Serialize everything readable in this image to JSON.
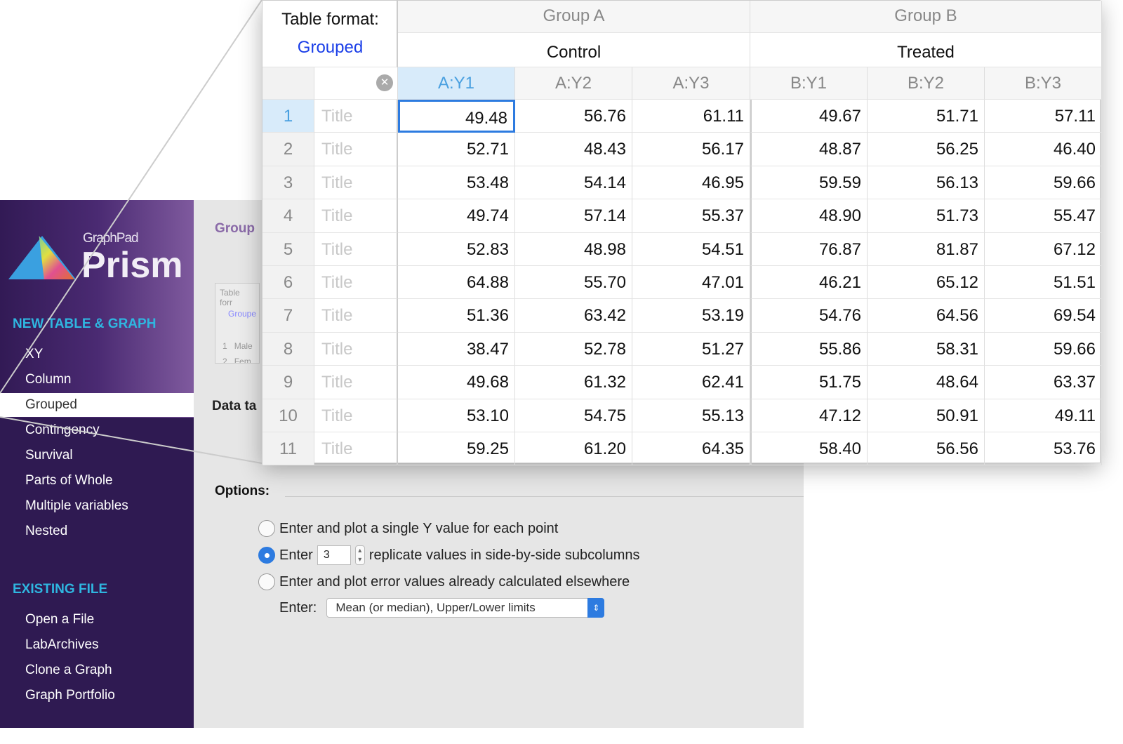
{
  "sidebar": {
    "logo": {
      "brand": "GraphPad",
      "product": "Prism"
    },
    "new_section": "NEW TABLE & GRAPH",
    "new_items": [
      "XY",
      "Column",
      "Grouped",
      "Contingency",
      "Survival",
      "Parts of Whole",
      "Multiple variables",
      "Nested"
    ],
    "selected": "Grouped",
    "existing_section": "EXISTING FILE",
    "existing_items": [
      "Open a File",
      "LabArchives",
      "Clone a Graph",
      "Graph Portfolio"
    ]
  },
  "panel": {
    "title_partial": "Group",
    "mini_table": {
      "format": "Table forr",
      "value": "Groupe",
      "rows": [
        [
          "1",
          "Male"
        ],
        [
          "2",
          "Fem"
        ]
      ]
    },
    "data_table_partial": "Data ta",
    "options_title": "Options:",
    "option1": "Enter and plot a single Y value for each point",
    "option2_prefix": "Enter",
    "replicates": "3",
    "option2_suffix": "replicate values in side-by-side subcolumns",
    "option3": "Enter and plot error values already calculated elsewhere",
    "enter_label": "Enter:",
    "enter_select": "Mean (or median), Upper/Lower limits",
    "selected_option": 2
  },
  "table": {
    "format_label": "Table format:",
    "format_value": "Grouped",
    "groups": [
      "Group A",
      "Group B"
    ],
    "subgroups": [
      "Control",
      "Treated"
    ],
    "columns": [
      "A:Y1",
      "A:Y2",
      "A:Y3",
      "B:Y1",
      "B:Y2",
      "B:Y3"
    ],
    "row_title": "Title",
    "rows": [
      [
        "49.48",
        "56.76",
        "61.11",
        "49.67",
        "51.71",
        "57.11"
      ],
      [
        "52.71",
        "48.43",
        "56.17",
        "48.87",
        "56.25",
        "46.40"
      ],
      [
        "53.48",
        "54.14",
        "46.95",
        "59.59",
        "56.13",
        "59.66"
      ],
      [
        "49.74",
        "57.14",
        "55.37",
        "48.90",
        "51.73",
        "55.47"
      ],
      [
        "52.83",
        "48.98",
        "54.51",
        "76.87",
        "81.87",
        "67.12"
      ],
      [
        "64.88",
        "55.70",
        "47.01",
        "46.21",
        "65.12",
        "51.51"
      ],
      [
        "51.36",
        "63.42",
        "53.19",
        "54.76",
        "64.56",
        "69.54"
      ],
      [
        "38.47",
        "52.78",
        "51.27",
        "55.86",
        "58.31",
        "59.66"
      ],
      [
        "49.68",
        "61.32",
        "62.41",
        "51.75",
        "48.64",
        "63.37"
      ],
      [
        "53.10",
        "54.75",
        "55.13",
        "47.12",
        "50.91",
        "49.11"
      ],
      [
        "59.25",
        "61.20",
        "64.35",
        "58.40",
        "56.56",
        "53.76"
      ]
    ],
    "colors": {
      "accent": "#2d7be0",
      "selected_header": "#d8ebfa",
      "format_value": "#1a3ee8"
    }
  }
}
